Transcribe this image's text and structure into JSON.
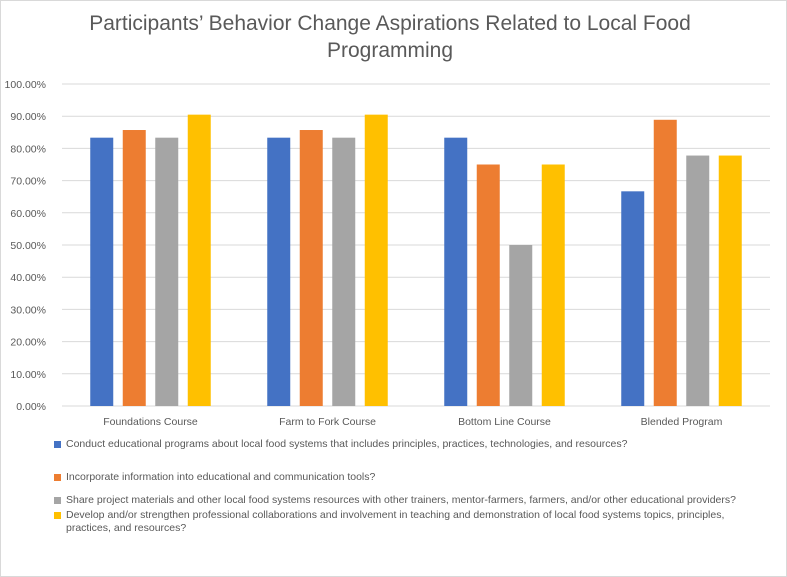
{
  "chart_data": {
    "type": "bar",
    "title": "Participants’ Behavior Change Aspirations Related to Local Food Programming",
    "categories": [
      "Foundations Course",
      "Farm to Fork Course",
      "Bottom Line Course",
      "Blended Program"
    ],
    "series": [
      {
        "name": "Conduct educational programs about local food systems that includes principles, practices, technologies, and resources?",
        "color": "#4472C4",
        "values": [
          0.8333,
          0.8333,
          0.8333,
          0.6667
        ]
      },
      {
        "name": "Incorporate information into educational and communication tools?",
        "color": "#ED7D31",
        "values": [
          0.8571,
          0.8571,
          0.75,
          0.8889
        ]
      },
      {
        "name": "Share project materials and other local food systems resources with other trainers, mentor-farmers, farmers, and/or other educational providers?",
        "color": "#A5A5A5",
        "values": [
          0.8333,
          0.8333,
          0.5,
          0.7778
        ]
      },
      {
        "name": "Develop and/or strengthen professional collaborations and involvement in teaching and demonstration of local food systems topics, principles, practices, and resources?",
        "color": "#FFC000",
        "values": [
          0.9048,
          0.9048,
          0.75,
          0.7778
        ]
      }
    ],
    "ylim": [
      0,
      1
    ],
    "yticks": [
      "0.00%",
      "10.00%",
      "20.00%",
      "30.00%",
      "40.00%",
      "50.00%",
      "60.00%",
      "70.00%",
      "80.00%",
      "90.00%",
      "100.00%"
    ],
    "grid": true,
    "legend_position": "bottom"
  }
}
